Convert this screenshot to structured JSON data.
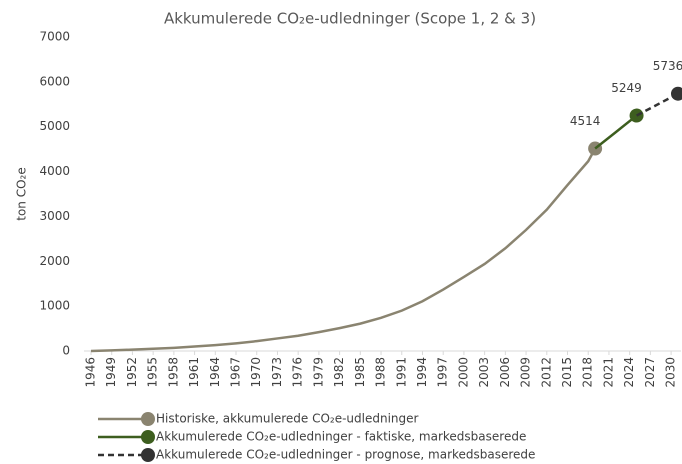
{
  "chart_data": {
    "type": "line",
    "title": "Akkumulerede CO₂e-udledninger (Scope 1, 2 & 3)",
    "y_label": "ton CO₂e",
    "xlim": [
      1946,
      2031
    ],
    "xticks": [
      1946,
      1949,
      1952,
      1955,
      1958,
      1961,
      1964,
      1967,
      1970,
      1973,
      1976,
      1979,
      1982,
      1985,
      1988,
      1991,
      1994,
      1997,
      2000,
      2003,
      2006,
      2009,
      2012,
      2015,
      2018,
      2021,
      2024,
      2027,
      2030
    ],
    "ylim": [
      0,
      7000
    ],
    "yticks": [
      0,
      1000,
      2000,
      3000,
      4000,
      5000,
      6000,
      7000
    ],
    "grid": false,
    "legend": "bottom",
    "series": [
      {
        "name": "Historiske, akkumulerede CO₂e-udledninger",
        "color": "#8a8470",
        "dash": false,
        "x": [
          1946,
          1949,
          1952,
          1955,
          1958,
          1961,
          1964,
          1967,
          1970,
          1973,
          1976,
          1979,
          1982,
          1985,
          1988,
          1991,
          1994,
          1997,
          2000,
          2003,
          2006,
          2009,
          2012,
          2015,
          2018,
          2019
        ],
        "values": [
          0,
          15,
          30,
          50,
          70,
          100,
          130,
          170,
          220,
          280,
          340,
          420,
          510,
          610,
          740,
          900,
          1110,
          1370,
          1650,
          1940,
          2290,
          2700,
          3150,
          3700,
          4230,
          4514
        ]
      },
      {
        "name": "Akkumulerede CO₂e-udledninger - faktiske, markedsbaserede",
        "color": "#3d5e1f",
        "dash": false,
        "x": [
          2019,
          2022,
          2025
        ],
        "values": [
          4514,
          4880,
          5249
        ]
      },
      {
        "name": "Akkumulerede CO₂e-udledninger - prognose, markedsbaserede",
        "color": "#333333",
        "dash": true,
        "x": [
          2025,
          2031
        ],
        "values": [
          5249,
          5736
        ]
      }
    ]
  }
}
